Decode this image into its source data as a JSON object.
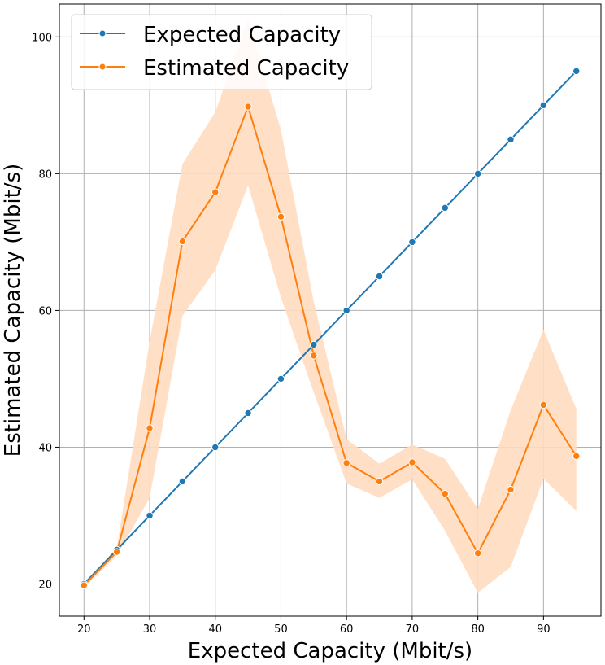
{
  "chart_data": {
    "type": "line",
    "title": "",
    "xlabel": "Expected Capacity (Mbit/s)",
    "ylabel": "Estimated Capacity (Mbit/s)",
    "xlim": [
      16.25,
      98.75
    ],
    "ylim": [
      15.3,
      104.8
    ],
    "xticks": [
      20,
      30,
      40,
      50,
      60,
      70,
      80,
      90
    ],
    "yticks": [
      20,
      40,
      60,
      80,
      100
    ],
    "grid": true,
    "legend_position": "top-left",
    "x": [
      20,
      25,
      30,
      35,
      40,
      45,
      50,
      55,
      60,
      65,
      70,
      75,
      80,
      85,
      90,
      95
    ],
    "series": [
      {
        "name": "Expected Capacity",
        "color": "#1f77b4",
        "values": [
          20,
          25,
          30,
          35,
          40,
          45,
          50,
          55,
          60,
          65,
          70,
          75,
          80,
          85,
          90,
          95
        ]
      },
      {
        "name": "Estimated Capacity",
        "color": "#ff7f0e",
        "band_color": "#ffdcbf",
        "values": [
          19.8,
          24.7,
          42.8,
          70.1,
          77.3,
          89.8,
          73.7,
          53.4,
          37.7,
          35.0,
          37.8,
          33.2,
          24.5,
          33.8,
          46.2,
          38.7
        ],
        "upper": [
          20.2,
          25.3,
          55.5,
          81.4,
          89.0,
          102.6,
          86.4,
          61.3,
          41.2,
          37.6,
          40.4,
          38.3,
          31.0,
          45.4,
          57.2,
          45.6
        ],
        "lower": [
          19.5,
          24.1,
          32.6,
          59.2,
          65.9,
          78.3,
          61.9,
          48.0,
          34.7,
          32.6,
          35.3,
          27.8,
          18.7,
          22.5,
          35.4,
          30.7
        ]
      }
    ]
  }
}
